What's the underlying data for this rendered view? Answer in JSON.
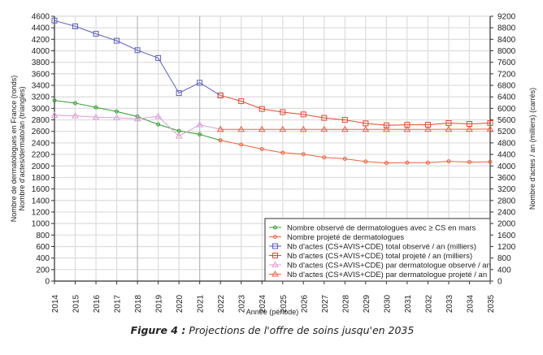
{
  "chart_data": {
    "type": "line",
    "caption_label": "Figure 4 :",
    "caption_text": " Projections de l'offre de soins jusqu'en 2035",
    "xlabel": "Année (période)",
    "ylabel_left_1": "Nombre de dermatologues en France (ronds)",
    "ylabel_left_2": "Nombre d'actes/dermato/an (triangles)",
    "ylabel_right": "Nombre d'actes / an (milliers) (carrés)",
    "ylim_left": [
      0,
      4600
    ],
    "ylim_right": [
      0,
      9200
    ],
    "yticks_left": [
      0,
      200,
      400,
      600,
      800,
      1000,
      1200,
      1400,
      1600,
      1800,
      2000,
      2200,
      2400,
      2600,
      2800,
      3000,
      3200,
      3400,
      3600,
      3800,
      4000,
      4200,
      4400,
      4600
    ],
    "yticks_right": [
      0,
      400,
      800,
      1200,
      1600,
      2000,
      2400,
      2800,
      3200,
      3600,
      4000,
      4400,
      4800,
      5200,
      5600,
      6000,
      6400,
      6800,
      7200,
      7600,
      8000,
      8400,
      8800,
      9200
    ],
    "x": [
      2014,
      2015,
      2016,
      2017,
      2018,
      2019,
      2020,
      2021,
      2022,
      2023,
      2024,
      2025,
      2026,
      2027,
      2028,
      2029,
      2030,
      2031,
      2032,
      2033,
      2034,
      2035
    ],
    "grid": true,
    "legend_position": "bottom-right",
    "series": [
      {
        "name": "Nombre observé de dermatologues avec ≥ CS en mars",
        "axis": "left",
        "marker": "circle",
        "color": "#2ca02c",
        "x": [
          2014,
          2015,
          2016,
          2017,
          2018,
          2019,
          2020,
          2021,
          2022
        ],
        "values": [
          3138,
          3091,
          3016,
          2946,
          2857,
          2721,
          2609,
          2548,
          2445
        ]
      },
      {
        "name": "Nombre projeté de dermatologues",
        "axis": "left",
        "marker": "circle",
        "color": "#f0603c",
        "x": [
          2022,
          2023,
          2024,
          2025,
          2026,
          2027,
          2028,
          2029,
          2030,
          2031,
          2032,
          2033,
          2034,
          2035
        ],
        "values": [
          2445,
          2370,
          2293,
          2229,
          2205,
          2148,
          2124,
          2076,
          2052,
          2057,
          2057,
          2080,
          2067,
          2071
        ]
      },
      {
        "name": "Nb d'actes (CS+AVIS+CDE) total observé / an (milliers)",
        "axis": "right",
        "marker": "square",
        "color": "#5b5bc0",
        "x": [
          2014,
          2015,
          2016,
          2017,
          2018,
          2019,
          2020,
          2021,
          2022
        ],
        "values": [
          9050,
          8850,
          8590,
          8350,
          8020,
          7750,
          6530,
          6890,
          6450
        ]
      },
      {
        "name": "Nb d'actes (CS+AVIS+CDE) total projeté / an (milliers)",
        "axis": "right",
        "marker": "square",
        "color": "#e8452c",
        "x": [
          2022,
          2023,
          2024,
          2025,
          2026,
          2027,
          2028,
          2029,
          2030,
          2031,
          2032,
          2033,
          2034,
          2035
        ],
        "values": [
          6450,
          6250,
          5980,
          5870,
          5790,
          5670,
          5600,
          5480,
          5410,
          5430,
          5430,
          5490,
          5460,
          5490
        ]
      },
      {
        "name": "Nb d'actes (CS+AVIS+CDE) par dermatologue observé / an",
        "axis": "left",
        "marker": "triangle",
        "color": "#e09ad8",
        "x": [
          2014,
          2015,
          2016,
          2017,
          2018,
          2019,
          2020,
          2021,
          2022
        ],
        "values": [
          2880,
          2870,
          2846,
          2837,
          2818,
          2860,
          2518,
          2715,
          2637
        ]
      },
      {
        "name": "Nb d'actes (CS+AVIS+CDE) par dermatologue projeté / an",
        "axis": "left",
        "marker": "triangle",
        "color": "#f0603c",
        "x": [
          2022,
          2023,
          2024,
          2025,
          2026,
          2027,
          2028,
          2029,
          2030,
          2031,
          2032,
          2033,
          2034,
          2035
        ],
        "values": [
          2635,
          2635,
          2635,
          2635,
          2635,
          2635,
          2635,
          2635,
          2635,
          2635,
          2635,
          2637,
          2637,
          2640
        ]
      }
    ]
  }
}
